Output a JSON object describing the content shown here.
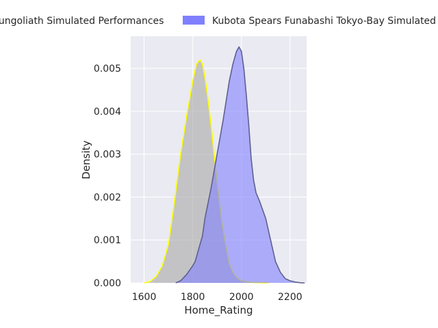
{
  "chart_data": {
    "type": "area",
    "xlabel": "Home_Rating",
    "ylabel": "Density",
    "xlim": [
      1545,
      2268
    ],
    "ylim": [
      0,
      0.00575
    ],
    "x_ticks": [
      1600,
      1800,
      2000,
      2200
    ],
    "y_ticks": [
      0.0,
      0.001,
      0.002,
      0.003,
      0.004,
      0.005
    ],
    "x_tick_labels": [
      "1600",
      "1800",
      "2000",
      "2200"
    ],
    "y_tick_labels": [
      "0.000",
      "0.001",
      "0.002",
      "0.003",
      "0.004",
      "0.005"
    ],
    "grid": true,
    "legend_position": "top-center",
    "background_color": "#eaeaf2",
    "series": [
      {
        "name": "Sungoliath Simulated Performances",
        "fill_color": "#a9a9a9",
        "line_color": "#ffff00",
        "x": [
          1600,
          1625,
          1650,
          1675,
          1700,
          1725,
          1750,
          1775,
          1800,
          1815,
          1830,
          1840,
          1850,
          1860,
          1875,
          1890,
          1905,
          1920,
          1935,
          1950,
          1965,
          1980,
          2000,
          2025,
          2050,
          2075,
          2100,
          2112
        ],
        "y": [
          0.0,
          3e-05,
          0.00015,
          0.0004,
          0.0009,
          0.0019,
          0.003,
          0.0039,
          0.0047,
          0.0051,
          0.0052,
          0.0051,
          0.0048,
          0.0044,
          0.0037,
          0.0029,
          0.0021,
          0.0014,
          0.0009,
          0.00045,
          0.00025,
          0.00013,
          5e-05,
          2e-05,
          1e-05,
          5e-06,
          2e-06,
          0.0
        ]
      },
      {
        "name": "Kubota Spears Funabashi Tokyo-Bay Simulated Performances",
        "fill_color": "#8080ff",
        "line_color": "#5f5f8f",
        "x": [
          1730,
          1750,
          1775,
          1800,
          1810,
          1825,
          1840,
          1850,
          1875,
          1900,
          1925,
          1950,
          1965,
          1980,
          1990,
          2000,
          2010,
          2020,
          2030,
          2040,
          2050,
          2060,
          2075,
          2100,
          2120,
          2140,
          2160,
          2180,
          2200,
          2220,
          2240,
          2260
        ],
        "y": [
          0.0,
          5e-05,
          0.0002,
          0.0004,
          0.0005,
          0.0008,
          0.0011,
          0.0015,
          0.0022,
          0.003,
          0.0038,
          0.0047,
          0.0051,
          0.0054,
          0.0055,
          0.0054,
          0.005,
          0.0044,
          0.0037,
          0.0029,
          0.0024,
          0.0021,
          0.0019,
          0.0015,
          0.001,
          0.0005,
          0.00025,
          0.0001,
          5e-05,
          2e-05,
          5e-06,
          0.0
        ]
      }
    ]
  }
}
